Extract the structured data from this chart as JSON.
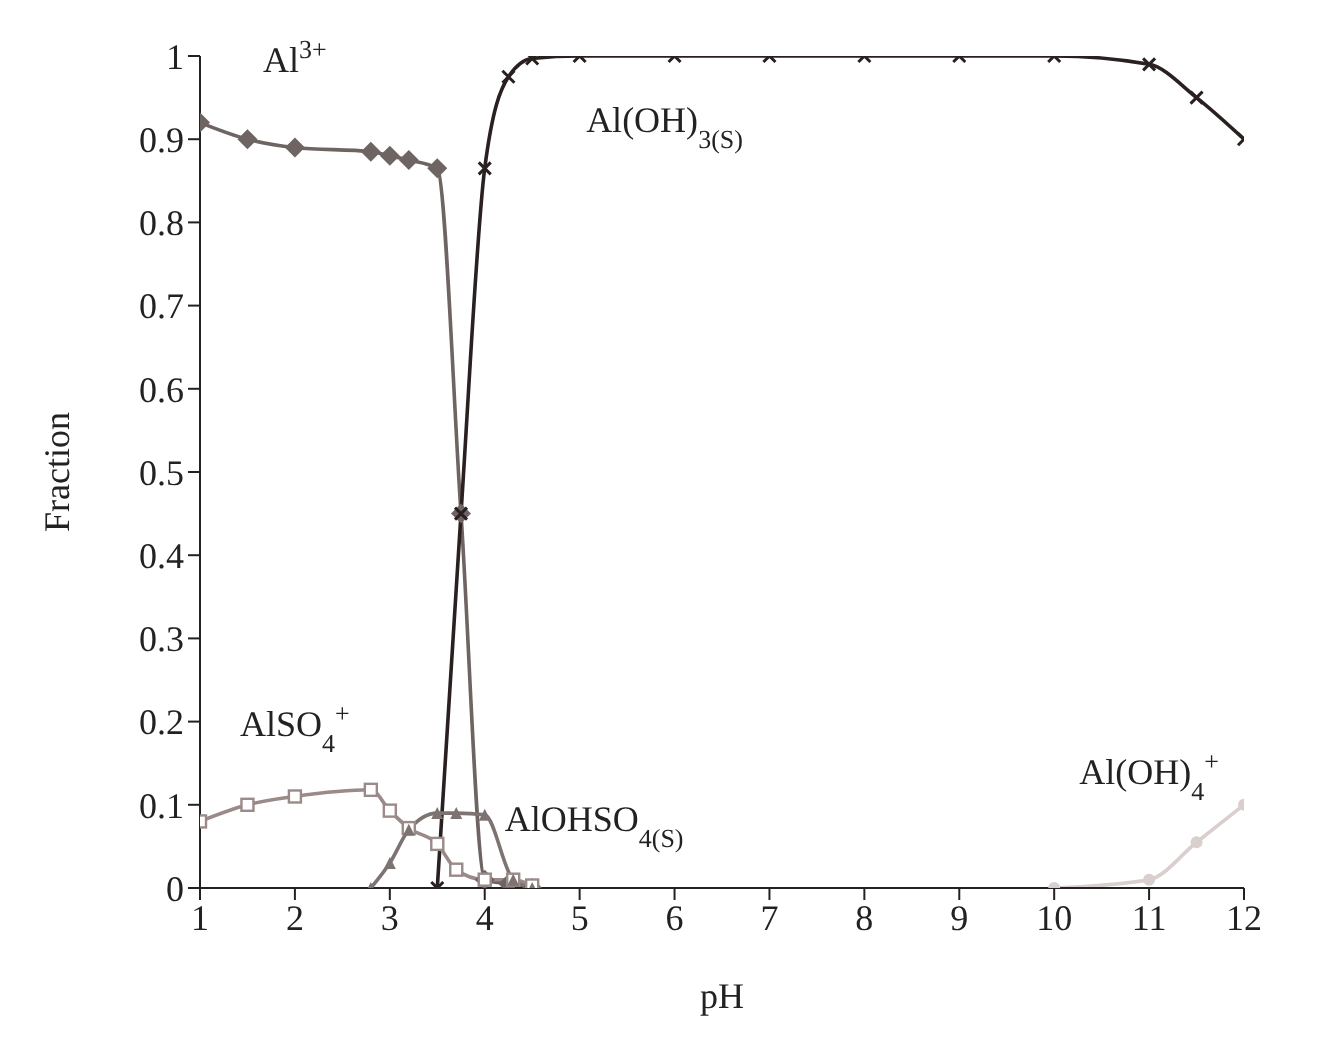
{
  "chart_data": {
    "type": "line",
    "xlabel": "pH",
    "ylabel": "Fraction",
    "xlim": [
      1,
      12
    ],
    "ylim": [
      0,
      1
    ],
    "xticks": [
      1,
      2,
      3,
      4,
      5,
      6,
      7,
      8,
      9,
      10,
      11,
      12
    ],
    "yticks": [
      0,
      0.1,
      0.2,
      0.3,
      0.4,
      0.5,
      0.6,
      0.7,
      0.8,
      0.9,
      1
    ],
    "grid": false,
    "legend": false,
    "series": [
      {
        "name": "Al$^{3+}$",
        "color": "#6e6462",
        "marker": "diamond",
        "x": [
          1,
          1.5,
          2,
          2.8,
          3,
          3.2,
          3.5,
          3.75,
          4,
          4.25,
          4.5
        ],
        "values": [
          0.92,
          0.9,
          0.89,
          0.885,
          0.88,
          0.875,
          0.865,
          0.45,
          0.01,
          0.005,
          0
        ]
      },
      {
        "name": "Al(OH)$_{3(S)}$",
        "color": "#2a2020",
        "marker": "cross",
        "x": [
          3.5,
          3.75,
          4,
          4.25,
          4.5,
          5,
          6,
          7,
          8,
          9,
          10,
          11,
          11.5,
          12
        ],
        "values": [
          0,
          0.45,
          0.865,
          0.975,
          0.997,
          1,
          1,
          1,
          1,
          1,
          1,
          0.99,
          0.95,
          0.9
        ]
      },
      {
        "name": "AlSO$_{4}$$^{+}$",
        "color": "#9a8a88",
        "marker": "square",
        "x": [
          1,
          1.5,
          2,
          2.8,
          3,
          3.2,
          3.5,
          3.7,
          4,
          4.3,
          4.5
        ],
        "values": [
          0.08,
          0.1,
          0.11,
          0.118,
          0.093,
          0.072,
          0.053,
          0.022,
          0.01,
          0.01,
          0.003
        ]
      },
      {
        "name": "AlOHSO$_{4(S)}$",
        "color": "#7d7472",
        "marker": "triangle",
        "x": [
          2.8,
          3,
          3.2,
          3.5,
          3.7,
          4,
          4.3,
          4.5
        ],
        "values": [
          0,
          0.03,
          0.07,
          0.09,
          0.09,
          0.088,
          0.01,
          0
        ]
      },
      {
        "name": "Al(OH)$_{4}$$^{+}$",
        "color": "#d9cfcd",
        "marker": "circle",
        "x": [
          10,
          11,
          11.5,
          12
        ],
        "values": [
          0,
          0.01,
          0.055,
          0.1
        ]
      }
    ]
  }
}
